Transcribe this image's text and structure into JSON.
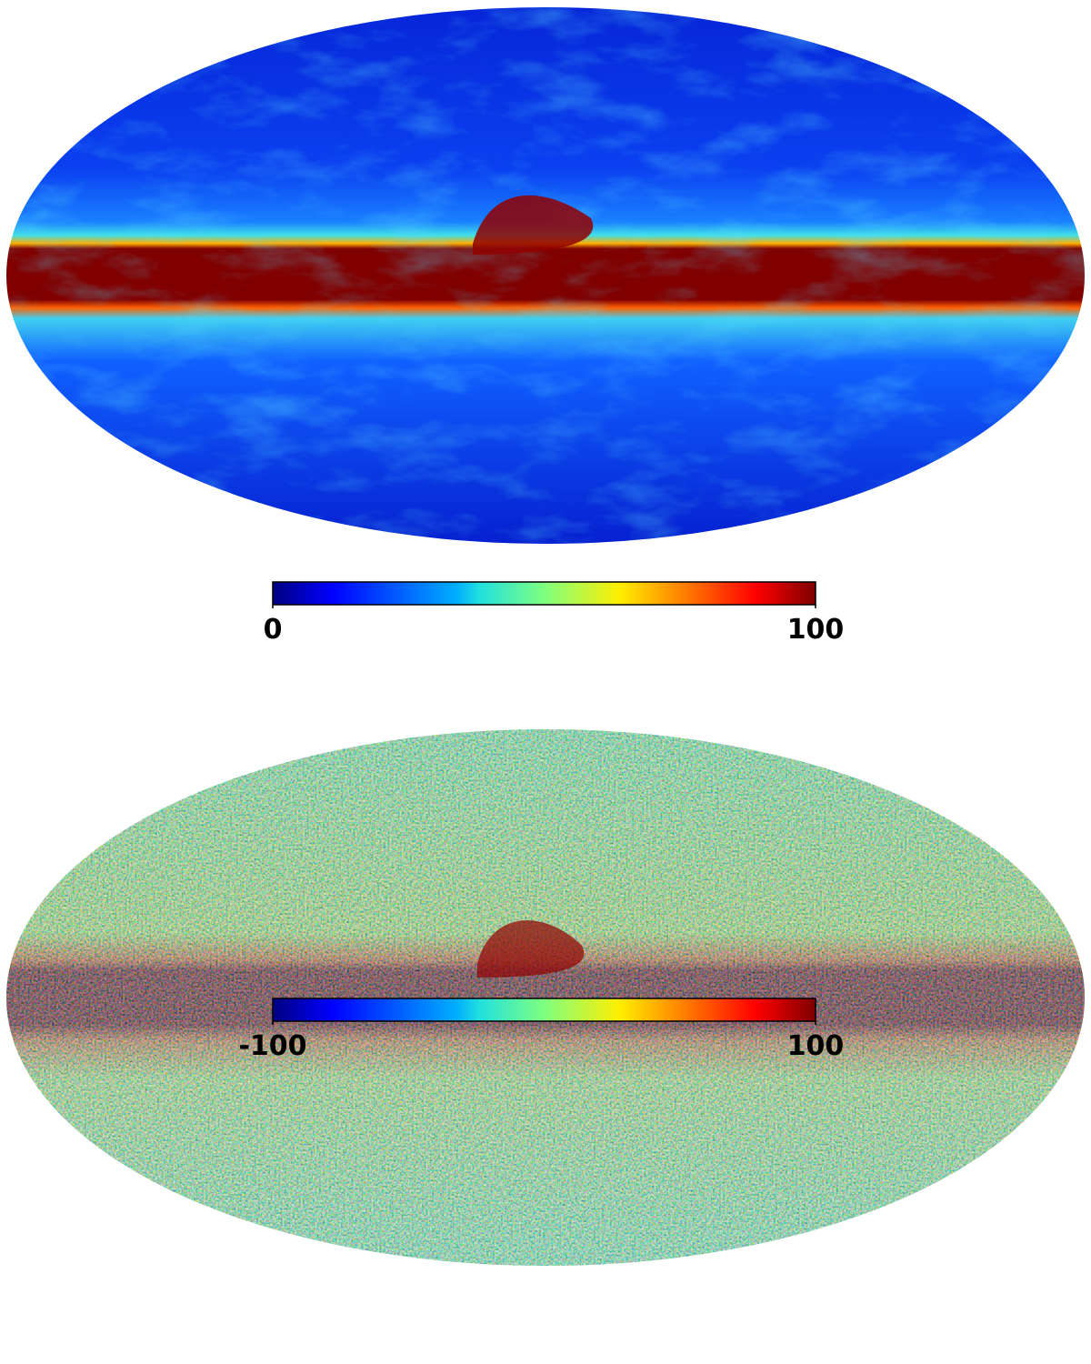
{
  "maps": [
    {
      "colorbar": {
        "ticks": [
          0,
          100
        ]
      }
    },
    {
      "colorbar": {
        "ticks": [
          -100,
          100
        ]
      }
    }
  ]
}
